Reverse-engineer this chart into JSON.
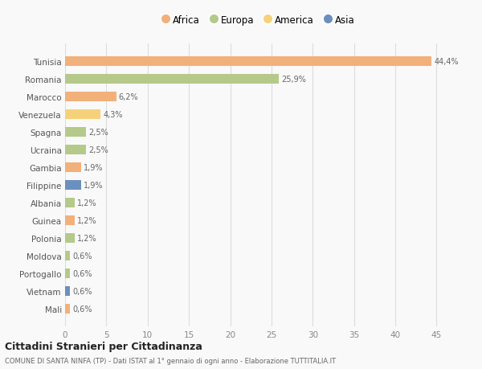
{
  "categories": [
    "Tunisia",
    "Romania",
    "Marocco",
    "Venezuela",
    "Spagna",
    "Ucraina",
    "Gambia",
    "Filippine",
    "Albania",
    "Guinea",
    "Polonia",
    "Moldova",
    "Portogallo",
    "Vietnam",
    "Mali"
  ],
  "values": [
    44.4,
    25.9,
    6.2,
    4.3,
    2.5,
    2.5,
    1.9,
    1.9,
    1.2,
    1.2,
    1.2,
    0.6,
    0.6,
    0.6,
    0.6
  ],
  "labels": [
    "44,4%",
    "25,9%",
    "6,2%",
    "4,3%",
    "2,5%",
    "2,5%",
    "1,9%",
    "1,9%",
    "1,2%",
    "1,2%",
    "1,2%",
    "0,6%",
    "0,6%",
    "0,6%",
    "0,6%"
  ],
  "continents": [
    "Africa",
    "Europa",
    "Africa",
    "America",
    "Europa",
    "Europa",
    "Africa",
    "Asia",
    "Europa",
    "Africa",
    "Europa",
    "Europa",
    "Europa",
    "Asia",
    "Africa"
  ],
  "colors": {
    "Africa": "#F2B07B",
    "Europa": "#B5C98A",
    "America": "#F5D27A",
    "Asia": "#6B8FBE"
  },
  "legend_order": [
    "Africa",
    "Europa",
    "America",
    "Asia"
  ],
  "title": "Cittadini Stranieri per Cittadinanza",
  "subtitle": "COMUNE DI SANTA NINFA (TP) - Dati ISTAT al 1° gennaio di ogni anno - Elaborazione TUTTITALIA.IT",
  "xlim": [
    0,
    47
  ],
  "xticks": [
    0,
    5,
    10,
    15,
    20,
    25,
    30,
    35,
    40,
    45
  ],
  "bg_color": "#f9f9f9",
  "grid_color": "#dddddd"
}
